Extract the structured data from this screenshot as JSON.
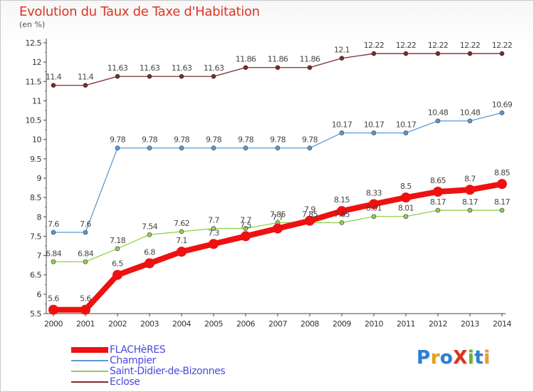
{
  "title": "Evolution du Taux de Taxe d'Habitation",
  "subtitle": "(en %)",
  "logo": {
    "text": "ProXiti",
    "letters": [
      "P",
      "r",
      "o",
      "X",
      "i",
      "t",
      "i"
    ],
    "colors": [
      "#2a7fd4",
      "#e8a020",
      "#2a7fd4",
      "#e03020",
      "#6ab02a",
      "#2a7fd4",
      "#e8a020"
    ]
  },
  "chart_data": {
    "type": "line",
    "x": [
      "2000",
      "2001",
      "2002",
      "2003",
      "2004",
      "2005",
      "2006",
      "2007",
      "2008",
      "2009",
      "2010",
      "2011",
      "2012",
      "2013",
      "2014"
    ],
    "ylim": [
      5.5,
      12.5
    ],
    "yticks": [
      "5.5",
      "6",
      "6.5",
      "7",
      "7.5",
      "8",
      "8.5",
      "9",
      "9.5",
      "10",
      "10.5",
      "11",
      "11.5",
      "12",
      "12.5"
    ],
    "grid": false,
    "legend_position": "bottom-left",
    "series": [
      {
        "name": "FLACHèRES",
        "color": "#ee1111",
        "width": 8,
        "marker": 7,
        "values": [
          5.6,
          5.6,
          6.5,
          6.8,
          7.1,
          7.3,
          7.5,
          7.7,
          7.9,
          8.15,
          8.33,
          8.5,
          8.65,
          8.7,
          8.85
        ],
        "labels": [
          "5.6",
          "5.6",
          "6.5",
          "6.8",
          "7.1",
          "7.3",
          "7.5",
          "7.7",
          "7.9",
          "8.15",
          "8.33",
          "8.5",
          "8.65",
          "8.7",
          "8.85"
        ]
      },
      {
        "name": "Champier",
        "color": "#5b9bd5",
        "width": 1.3,
        "marker": 3,
        "values": [
          7.6,
          7.6,
          9.78,
          9.78,
          9.78,
          9.78,
          9.78,
          9.78,
          9.78,
          10.17,
          10.17,
          10.17,
          10.48,
          10.48,
          10.69
        ],
        "labels": [
          "7.6",
          "7.6",
          "9.78",
          "9.78",
          "9.78",
          "9.78",
          "9.78",
          "9.78",
          "9.78",
          "10.17",
          "10.17",
          "10.17",
          "10.48",
          "10.48",
          "10.69"
        ]
      },
      {
        "name": "Saint-Didier-de-Bizonnes",
        "color": "#92d050",
        "width": 1.3,
        "marker": 3,
        "values": [
          6.84,
          6.84,
          7.18,
          7.54,
          7.62,
          7.7,
          7.7,
          7.85,
          7.85,
          7.85,
          8.01,
          8.01,
          8.17,
          8.17,
          8.17
        ],
        "labels": [
          "6.84",
          "6.84",
          "7.18",
          "7.54",
          "7.62",
          "7.7",
          "7.7",
          "7.85",
          "7.85",
          "7.85",
          "8.01",
          "8.01",
          "8.17",
          "8.17",
          "8.17"
        ]
      },
      {
        "name": "Eclose",
        "color": "#7b2c2c",
        "width": 1.3,
        "marker": 3,
        "values": [
          11.4,
          11.4,
          11.63,
          11.63,
          11.63,
          11.63,
          11.86,
          11.86,
          11.86,
          12.1,
          12.22,
          12.22,
          12.22,
          12.22,
          12.22
        ],
        "labels": [
          "11.4",
          "11.4",
          "11.63",
          "11.63",
          "11.63",
          "11.63",
          "11.86",
          "11.86",
          "11.86",
          "12.1",
          "12.22",
          "12.22",
          "12.22",
          "12.22",
          "12.22"
        ]
      }
    ]
  }
}
